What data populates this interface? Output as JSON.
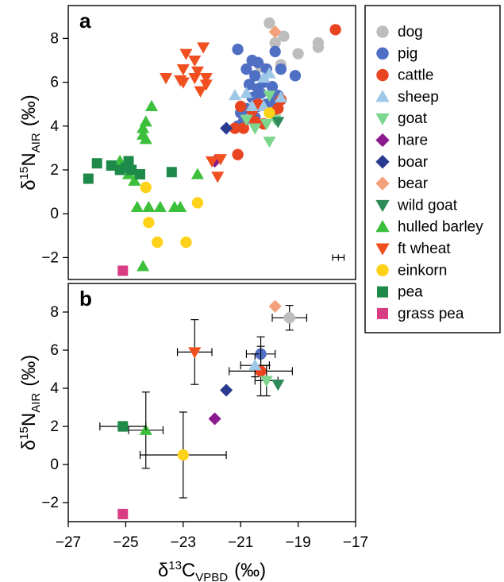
{
  "chart_data": [
    {
      "panel": "a",
      "type": "scatter",
      "ylabel_main": "δ",
      "ylabel_sup": "15",
      "ylabel_el": "N",
      "ylabel_sub": "AIR",
      "ylabel_unit": "(‰)",
      "xlim": [
        -27,
        -17
      ],
      "ylim": [
        -3,
        9.5
      ],
      "yticks": [
        -2,
        0,
        2,
        4,
        6,
        8
      ],
      "error_bar": {
        "x": -17.6,
        "y": -2.0,
        "xerr": 0.2,
        "yerr": 0.1
      },
      "series": [
        {
          "name": "dog",
          "color": "#bdbdbd",
          "marker": "circle",
          "points": [
            [
              -20.0,
              8.7
            ],
            [
              -19.5,
              8.1
            ],
            [
              -19.8,
              7.8
            ],
            [
              -19.0,
              7.3
            ],
            [
              -18.3,
              7.6
            ],
            [
              -18.3,
              7.8
            ],
            [
              -19.6,
              6.8
            ],
            [
              -20.3,
              6.7
            ]
          ]
        },
        {
          "name": "pig",
          "color": "#4f6fc4",
          "marker": "circle",
          "points": [
            [
              -21.1,
              7.5
            ],
            [
              -20.6,
              7.0
            ],
            [
              -20.4,
              6.9
            ],
            [
              -20.1,
              6.6
            ],
            [
              -19.8,
              7.4
            ],
            [
              -19.6,
              6.6
            ],
            [
              -19.1,
              6.3
            ],
            [
              -20.8,
              6.6
            ],
            [
              -20.5,
              6.3
            ],
            [
              -20.7,
              5.9
            ],
            [
              -20.2,
              6.0
            ],
            [
              -19.9,
              5.8
            ],
            [
              -20.6,
              5.3
            ],
            [
              -20.1,
              5.0
            ],
            [
              -20.4,
              4.9
            ],
            [
              -20.8,
              4.8
            ],
            [
              -21.0,
              4.6
            ],
            [
              -20.5,
              4.4
            ],
            [
              -20.9,
              4.2
            ],
            [
              -21.1,
              4.0
            ],
            [
              -20.4,
              5.7
            ],
            [
              -19.8,
              5.1
            ],
            [
              -19.7,
              5.4
            ],
            [
              -20.3,
              5.5
            ]
          ]
        },
        {
          "name": "cattle",
          "color": "#e84420",
          "marker": "circle",
          "points": [
            [
              -17.7,
              8.4
            ],
            [
              -21.1,
              2.7
            ],
            [
              -21.2,
              3.9
            ],
            [
              -20.9,
              3.9
            ],
            [
              -21.0,
              4.9
            ],
            [
              -20.6,
              4.7
            ],
            [
              -20.4,
              5.0
            ],
            [
              -19.9,
              4.6
            ],
            [
              -19.7,
              4.8
            ],
            [
              -19.6,
              5.2
            ],
            [
              -20.2,
              4.1
            ],
            [
              -20.5,
              4.2
            ]
          ]
        },
        {
          "name": "sheep",
          "color": "#9ec8e8",
          "marker": "triangle-up",
          "points": [
            [
              -21.2,
              5.4
            ],
            [
              -20.8,
              5.5
            ],
            [
              -20.2,
              6.2
            ],
            [
              -20.0,
              6.4
            ],
            [
              -19.6,
              5.3
            ],
            [
              -20.2,
              4.9
            ],
            [
              -20.6,
              4.9
            ]
          ]
        },
        {
          "name": "goat",
          "color": "#7cd68e",
          "marker": "triangle-down",
          "points": [
            [
              -20.5,
              3.9
            ],
            [
              -20.0,
              3.3
            ],
            [
              -19.8,
              4.3
            ],
            [
              -20.1,
              4.1
            ],
            [
              -20.0,
              5.4
            ],
            [
              -20.8,
              4.3
            ]
          ]
        },
        {
          "name": "hare",
          "color": "#8a1a8e",
          "marker": "diamond",
          "points": [
            [
              -21.9,
              2.4
            ]
          ]
        },
        {
          "name": "boar",
          "color": "#2a3a8e",
          "marker": "diamond",
          "points": [
            [
              -21.5,
              3.9
            ]
          ]
        },
        {
          "name": "bear",
          "color": "#f4a07a",
          "marker": "diamond",
          "points": [
            [
              -19.8,
              8.3
            ]
          ]
        },
        {
          "name": "wild goat",
          "color": "#2e8a58",
          "marker": "triangle-down",
          "points": [
            [
              -19.7,
              4.2
            ]
          ]
        },
        {
          "name": "hulled barley",
          "color": "#3cc03c",
          "marker": "triangle-up",
          "points": [
            [
              -24.1,
              4.9
            ],
            [
              -24.3,
              4.2
            ],
            [
              -24.4,
              3.9
            ],
            [
              -24.4,
              3.6
            ],
            [
              -24.3,
              3.4
            ],
            [
              -25.2,
              2.4
            ],
            [
              -24.9,
              1.8
            ],
            [
              -24.7,
              1.5
            ],
            [
              -24.6,
              0.3
            ],
            [
              -24.2,
              0.3
            ],
            [
              -23.8,
              0.3
            ],
            [
              -23.3,
              0.3
            ],
            [
              -23.1,
              0.3
            ],
            [
              -22.5,
              1.8
            ],
            [
              -24.4,
              -2.4
            ]
          ]
        },
        {
          "name": "ft wheat",
          "color": "#f05020",
          "marker": "triangle-down",
          "points": [
            [
              -22.9,
              7.3
            ],
            [
              -22.3,
              7.6
            ],
            [
              -22.6,
              7.0
            ],
            [
              -23.0,
              6.6
            ],
            [
              -22.5,
              6.5
            ],
            [
              -22.2,
              6.2
            ],
            [
              -23.1,
              6.1
            ],
            [
              -22.6,
              6.2
            ],
            [
              -22.2,
              5.9
            ],
            [
              -22.4,
              5.6
            ],
            [
              -23.6,
              6.2
            ],
            [
              -23.0,
              6.0
            ],
            [
              -21.8,
              1.7
            ],
            [
              -22.0,
              2.4
            ],
            [
              -21.7,
              2.5
            ]
          ]
        },
        {
          "name": "einkorn",
          "color": "#ffd21a",
          "marker": "circle",
          "points": [
            [
              -24.3,
              1.2
            ],
            [
              -24.2,
              -0.4
            ],
            [
              -23.9,
              -1.3
            ],
            [
              -22.9,
              -1.3
            ],
            [
              -22.5,
              0.5
            ],
            [
              -20.0,
              4.6
            ]
          ]
        },
        {
          "name": "pea",
          "color": "#1e8a4a",
          "marker": "square",
          "points": [
            [
              -26.3,
              1.6
            ],
            [
              -26.0,
              2.3
            ],
            [
              -25.5,
              2.2
            ],
            [
              -25.2,
              2.0
            ],
            [
              -25.0,
              2.1
            ],
            [
              -24.9,
              2.4
            ],
            [
              -24.8,
              2.0
            ],
            [
              -24.5,
              1.8
            ],
            [
              -23.4,
              1.9
            ]
          ]
        },
        {
          "name": "grass pea",
          "color": "#d83c82",
          "marker": "square",
          "points": [
            [
              -25.1,
              -2.6
            ]
          ]
        }
      ]
    },
    {
      "panel": "b",
      "type": "scatter",
      "ylabel_main": "δ",
      "ylabel_sup": "15",
      "ylabel_el": "N",
      "ylabel_sub": "AIR",
      "ylabel_unit": "(‰)",
      "xlabel_main": "δ",
      "xlabel_sup": "13",
      "xlabel_el": "C",
      "xlabel_sub": "VPBD",
      "xlabel_unit": "(‰)",
      "xlim": [
        -27,
        -17
      ],
      "ylim": [
        -3,
        9.5
      ],
      "xticks": [
        -27,
        -25,
        -23,
        -21,
        -19,
        -17
      ],
      "xtick_labels": [
        "−27",
        "−25",
        "−23",
        "−21",
        "−19",
        "−17"
      ],
      "yticks": [
        -2,
        0,
        2,
        4,
        6,
        8
      ],
      "points": [
        {
          "name": "dog",
          "x": -19.3,
          "y": 7.7,
          "xerr": 0.6,
          "yerr": 0.65
        },
        {
          "name": "pig",
          "x": -20.3,
          "y": 5.8,
          "xerr": 0.5,
          "yerr": 0.9
        },
        {
          "name": "cattle",
          "x": -20.3,
          "y": 4.9,
          "xerr": 1.1,
          "yerr": 1.3
        },
        {
          "name": "sheep",
          "x": -20.5,
          "y": 5.2,
          "xerr": 0.5,
          "yerr": 0.6
        },
        {
          "name": "goat",
          "x": -20.1,
          "y": 4.4,
          "xerr": 0.4,
          "yerr": 0.8
        },
        {
          "name": "hare",
          "x": -21.9,
          "y": 2.4
        },
        {
          "name": "boar",
          "x": -21.5,
          "y": 3.9
        },
        {
          "name": "bear",
          "x": -19.8,
          "y": 8.3
        },
        {
          "name": "wild goat",
          "x": -19.7,
          "y": 4.2
        },
        {
          "name": "hulled barley",
          "x": -24.3,
          "y": 1.8,
          "xerr": 0.6,
          "yerr": 2.0
        },
        {
          "name": "ft wheat",
          "x": -22.6,
          "y": 5.9,
          "xerr": 0.6,
          "yerr": 1.7
        },
        {
          "name": "einkorn",
          "x": -23.0,
          "y": 0.5,
          "xerr": 1.5,
          "yerr": 2.25
        },
        {
          "name": "pea",
          "x": -25.1,
          "y": 2.0,
          "xerr": 0.8,
          "yerr": 0.25
        },
        {
          "name": "grass pea",
          "x": -25.1,
          "y": -2.6
        }
      ]
    }
  ],
  "panel_labels": {
    "a": "a",
    "b": "b"
  },
  "legend": [
    "dog",
    "pig",
    "cattle",
    "sheep",
    "goat",
    "hare",
    "boar",
    "bear",
    "wild goat",
    "hulled barley",
    "ft wheat",
    "einkorn",
    "pea",
    "grass pea"
  ]
}
